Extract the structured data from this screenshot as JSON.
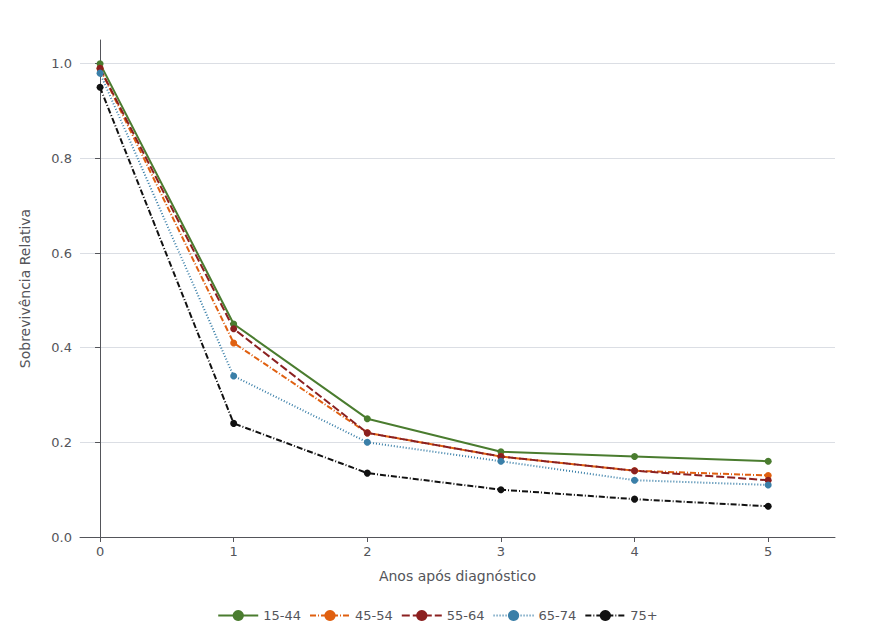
{
  "chart_data": {
    "type": "line",
    "x": [
      0,
      1,
      2,
      3,
      4,
      5
    ],
    "series": [
      {
        "name": "15-44",
        "color": "#4a7c2f",
        "line_style": "solid",
        "marker": "circle",
        "values": [
          1.0,
          0.45,
          0.25,
          0.18,
          0.17,
          0.16
        ]
      },
      {
        "name": "45-54",
        "color": "#e06010",
        "line_style": "dashdot",
        "marker": "circle",
        "values": [
          0.99,
          0.41,
          0.22,
          0.17,
          0.14,
          0.13
        ]
      },
      {
        "name": "55-64",
        "color": "#8b2020",
        "line_style": "dashed",
        "marker": "circle",
        "values": [
          0.99,
          0.44,
          0.22,
          0.17,
          0.14,
          0.12
        ]
      },
      {
        "name": "65-74",
        "color": "#3a7fa8",
        "line_style": "dotted",
        "marker": "circle",
        "values": [
          0.98,
          0.34,
          0.2,
          0.16,
          0.12,
          0.11
        ]
      },
      {
        "name": "75+",
        "color": "#111111",
        "line_style": "dashdot",
        "marker": "circle",
        "values": [
          0.95,
          0.24,
          0.135,
          0.1,
          0.08,
          0.065
        ]
      }
    ],
    "xlabel": "Anos após diagnóstico",
    "ylabel": "Sobrevivência Relativa",
    "xlim": [
      -0.15,
      5.5
    ],
    "ylim": [
      0.0,
      1.05
    ],
    "xticks": [
      0,
      1,
      2,
      3,
      4,
      5
    ],
    "yticks": [
      {
        "value": 0.0,
        "label": "0.0"
      },
      0.2,
      0.4,
      0.6,
      0.8,
      {
        "value": 1.0,
        "label": "1.0"
      }
    ],
    "grid": true,
    "legend": "bottom"
  }
}
